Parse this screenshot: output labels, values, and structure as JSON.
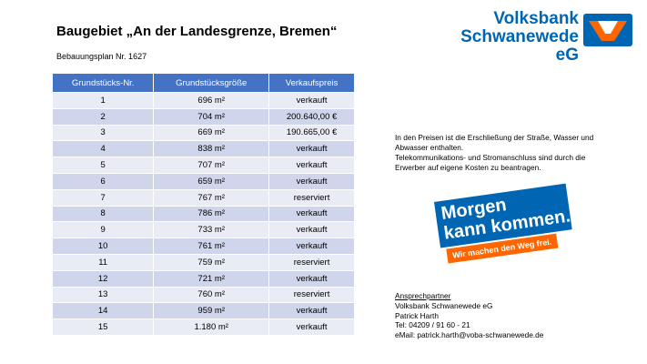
{
  "header": {
    "title": "Baugebiet „An der Landesgrenze, Bremen“",
    "subtitle": "Bebauungsplan Nr. 1627"
  },
  "logo": {
    "line1": "Volksbank",
    "line2": "Schwanewede eG"
  },
  "table": {
    "columns": [
      "Grundstücks-Nr.",
      "Grundstücksgröße",
      "Verkaufspreis"
    ],
    "rows": [
      [
        "1",
        "696 m²",
        "verkauft"
      ],
      [
        "2",
        "704 m²",
        "200.640,00 €"
      ],
      [
        "3",
        "669 m²",
        "190.665,00 €"
      ],
      [
        "4",
        "838 m²",
        "verkauft"
      ],
      [
        "5",
        "707 m²",
        "verkauft"
      ],
      [
        "6",
        "659 m²",
        "verkauft"
      ],
      [
        "7",
        "767 m²",
        "reserviert"
      ],
      [
        "8",
        "786 m²",
        "verkauft"
      ],
      [
        "9",
        "733 m²",
        "verkauft"
      ],
      [
        "10",
        "761 m²",
        "verkauft"
      ],
      [
        "11",
        "759 m²",
        "reserviert"
      ],
      [
        "12",
        "721 m²",
        "verkauft"
      ],
      [
        "13",
        "760 m²",
        "reserviert"
      ],
      [
        "14",
        "959 m²",
        "verkauft"
      ],
      [
        "15",
        "1.180 m²",
        "verkauft"
      ]
    ]
  },
  "note": {
    "lines": [
      "In den Preisen ist die Erschließung der Straße, Wasser und",
      "Abwasser enthalten.",
      "Telekommunikations- und Stromanschluss sind durch die",
      "Erwerber auf eigene Kosten zu beantragen."
    ]
  },
  "slogan": {
    "line1": "Morgen",
    "line2": "kann kommen.",
    "tagline": "Wir machen den Weg frei."
  },
  "contact": {
    "heading": "Ansprechpartner",
    "lines": [
      "Volksbank Schwanewede eG",
      "Patrick Harth",
      "Tel: 04209 / 91 60 - 21",
      "eMail: patrick.harth@voba-schwanewede.de"
    ]
  }
}
